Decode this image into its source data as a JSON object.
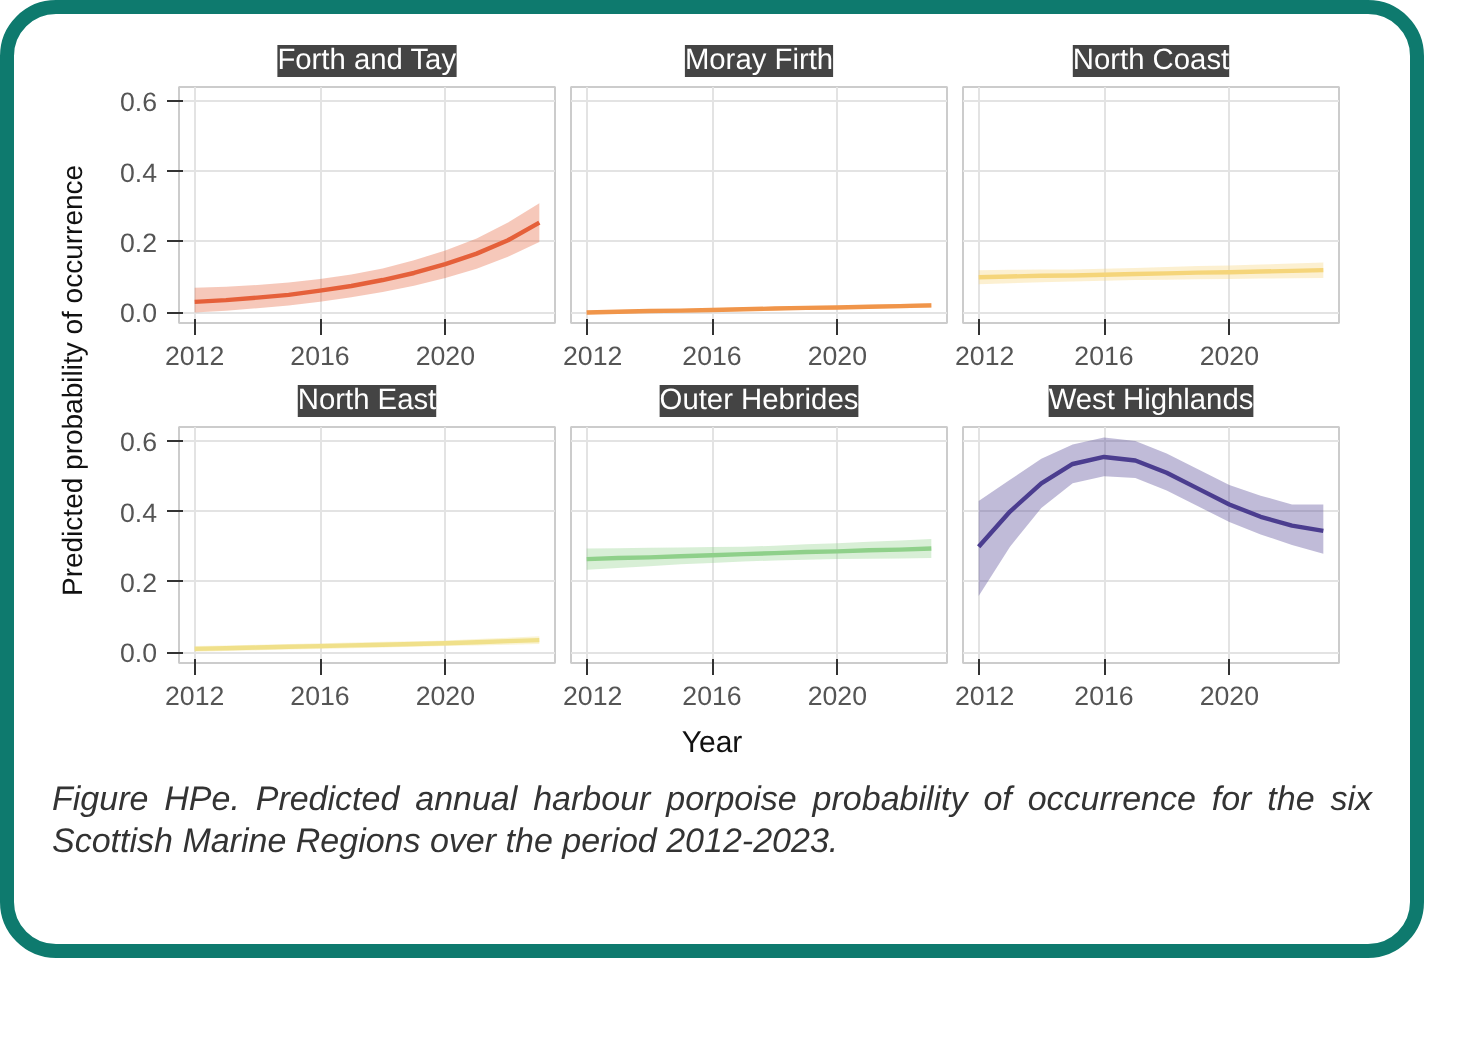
{
  "chart_data": [
    {
      "type": "line",
      "title": "Forth and Tay",
      "ylabel": "Predicted probability of occurrence",
      "annotations": [
        "Figure HPe. Predicted annual harbour porpoise probability of occurrence for the six Scottish Marine Regions over the period 2012-2023."
      ],
      "x": [
        2012,
        2013,
        2014,
        2015,
        2016,
        2017,
        2018,
        2019,
        2020,
        2021,
        2022,
        2023
      ],
      "xlim": [
        2011.5,
        2023.5
      ],
      "ylim": [
        -0.03,
        0.64
      ],
      "xticks": [
        2012,
        2016,
        2020
      ],
      "yticks": [
        {
          "value": 0,
          "label": "0.0"
        },
        0.2,
        0.4,
        0.6
      ],
      "grid": true,
      "series": [
        {
          "color": "#e5603a",
          "values": [
            0.03,
            0.035,
            0.042,
            0.05,
            0.062,
            0.075,
            0.092,
            0.112,
            0.137,
            0.167,
            0.205,
            0.255
          ],
          "lower": [
            0.0,
            0.005,
            0.012,
            0.02,
            0.03,
            0.043,
            0.058,
            0.076,
            0.098,
            0.124,
            0.158,
            0.2
          ],
          "upper": [
            0.07,
            0.073,
            0.078,
            0.085,
            0.095,
            0.108,
            0.125,
            0.148,
            0.176,
            0.21,
            0.255,
            0.31
          ]
        }
      ]
    },
    {
      "type": "line",
      "title": "Moray Firth",
      "x": [
        2012,
        2013,
        2014,
        2015,
        2016,
        2017,
        2018,
        2019,
        2020,
        2021,
        2022,
        2023
      ],
      "xlim": [
        2011.5,
        2023.5
      ],
      "ylim": [
        -0.03,
        0.64
      ],
      "xticks": [
        2012,
        2016,
        2020
      ],
      "yticks": [
        0,
        0.2,
        0.4,
        0.6
      ],
      "grid": true,
      "tick_labels": "x",
      "series": [
        {
          "color": "#f0954a",
          "values": [
            0.0,
            0.002,
            0.004,
            0.005,
            0.007,
            0.009,
            0.011,
            0.013,
            0.014,
            0.016,
            0.018,
            0.02
          ],
          "lower": [
            -0.005,
            -0.003,
            -0.001,
            0.0,
            0.002,
            0.004,
            0.006,
            0.008,
            0.009,
            0.011,
            0.012,
            0.013
          ],
          "upper": [
            0.005,
            0.007,
            0.009,
            0.01,
            0.012,
            0.014,
            0.016,
            0.018,
            0.019,
            0.021,
            0.024,
            0.027
          ]
        }
      ]
    },
    {
      "type": "line",
      "title": "North Coast",
      "x": [
        2012,
        2013,
        2014,
        2015,
        2016,
        2017,
        2018,
        2019,
        2020,
        2021,
        2022,
        2023
      ],
      "xlim": [
        2011.5,
        2023.5
      ],
      "ylim": [
        -0.03,
        0.64
      ],
      "xticks": [
        2012,
        2016,
        2020
      ],
      "yticks": [
        0,
        0.2,
        0.4,
        0.6
      ],
      "grid": true,
      "tick_labels": "x",
      "series": [
        {
          "color": "#f5d57a",
          "values": [
            0.1,
            0.102,
            0.104,
            0.105,
            0.107,
            0.109,
            0.111,
            0.113,
            0.114,
            0.116,
            0.118,
            0.12
          ],
          "lower": [
            0.08,
            0.083,
            0.086,
            0.088,
            0.09,
            0.092,
            0.093,
            0.094,
            0.095,
            0.096,
            0.097,
            0.098
          ],
          "upper": [
            0.12,
            0.121,
            0.122,
            0.122,
            0.124,
            0.126,
            0.129,
            0.132,
            0.133,
            0.136,
            0.139,
            0.142
          ]
        }
      ]
    },
    {
      "type": "line",
      "title": "North East",
      "x": [
        2012,
        2013,
        2014,
        2015,
        2016,
        2017,
        2018,
        2019,
        2020,
        2021,
        2022,
        2023
      ],
      "xlim": [
        2011.5,
        2023.5
      ],
      "ylim": [
        -0.03,
        0.64
      ],
      "xticks": [
        2012,
        2016,
        2020
      ],
      "yticks": [
        {
          "value": 0,
          "label": "0.0"
        },
        0.2,
        0.4,
        0.6
      ],
      "grid": true,
      "series": [
        {
          "color": "#f0e08a",
          "values": [
            0.01,
            0.012,
            0.014,
            0.016,
            0.018,
            0.02,
            0.022,
            0.024,
            0.026,
            0.029,
            0.032,
            0.035
          ],
          "lower": [
            0.002,
            0.004,
            0.006,
            0.008,
            0.01,
            0.012,
            0.014,
            0.016,
            0.018,
            0.02,
            0.022,
            0.024
          ],
          "upper": [
            0.018,
            0.02,
            0.022,
            0.024,
            0.026,
            0.028,
            0.03,
            0.032,
            0.034,
            0.038,
            0.042,
            0.046
          ]
        }
      ]
    },
    {
      "type": "line",
      "title": "Outer Hebrides",
      "xlabel": "Year",
      "x": [
        2012,
        2013,
        2014,
        2015,
        2016,
        2017,
        2018,
        2019,
        2020,
        2021,
        2022,
        2023
      ],
      "xlim": [
        2011.5,
        2023.5
      ],
      "ylim": [
        -0.03,
        0.64
      ],
      "xticks": [
        2012,
        2016,
        2020
      ],
      "yticks": [
        0,
        0.2,
        0.4,
        0.6
      ],
      "grid": true,
      "tick_labels": "x",
      "series": [
        {
          "color": "#8fd08a",
          "values": [
            0.265,
            0.268,
            0.27,
            0.273,
            0.276,
            0.279,
            0.282,
            0.285,
            0.287,
            0.29,
            0.292,
            0.295
          ],
          "lower": [
            0.235,
            0.24,
            0.245,
            0.25,
            0.254,
            0.258,
            0.261,
            0.263,
            0.265,
            0.266,
            0.267,
            0.268
          ],
          "upper": [
            0.295,
            0.296,
            0.297,
            0.298,
            0.299,
            0.3,
            0.303,
            0.307,
            0.31,
            0.314,
            0.318,
            0.322
          ]
        }
      ]
    },
    {
      "type": "line",
      "title": "West Highlands",
      "x": [
        2012,
        2013,
        2014,
        2015,
        2016,
        2017,
        2018,
        2019,
        2020,
        2021,
        2022,
        2023
      ],
      "xlim": [
        2011.5,
        2023.5
      ],
      "ylim": [
        -0.03,
        0.64
      ],
      "xticks": [
        2012,
        2016,
        2020
      ],
      "yticks": [
        0,
        0.2,
        0.4,
        0.6
      ],
      "grid": true,
      "tick_labels": "x",
      "series": [
        {
          "color": "#4b3d8f",
          "values": [
            0.3,
            0.4,
            0.48,
            0.535,
            0.555,
            0.545,
            0.51,
            0.465,
            0.42,
            0.385,
            0.36,
            0.345
          ],
          "lower": [
            0.16,
            0.3,
            0.41,
            0.48,
            0.5,
            0.495,
            0.46,
            0.415,
            0.37,
            0.335,
            0.305,
            0.28
          ],
          "upper": [
            0.43,
            0.49,
            0.55,
            0.59,
            0.61,
            0.6,
            0.565,
            0.52,
            0.475,
            0.445,
            0.42,
            0.42
          ]
        }
      ]
    }
  ]
}
